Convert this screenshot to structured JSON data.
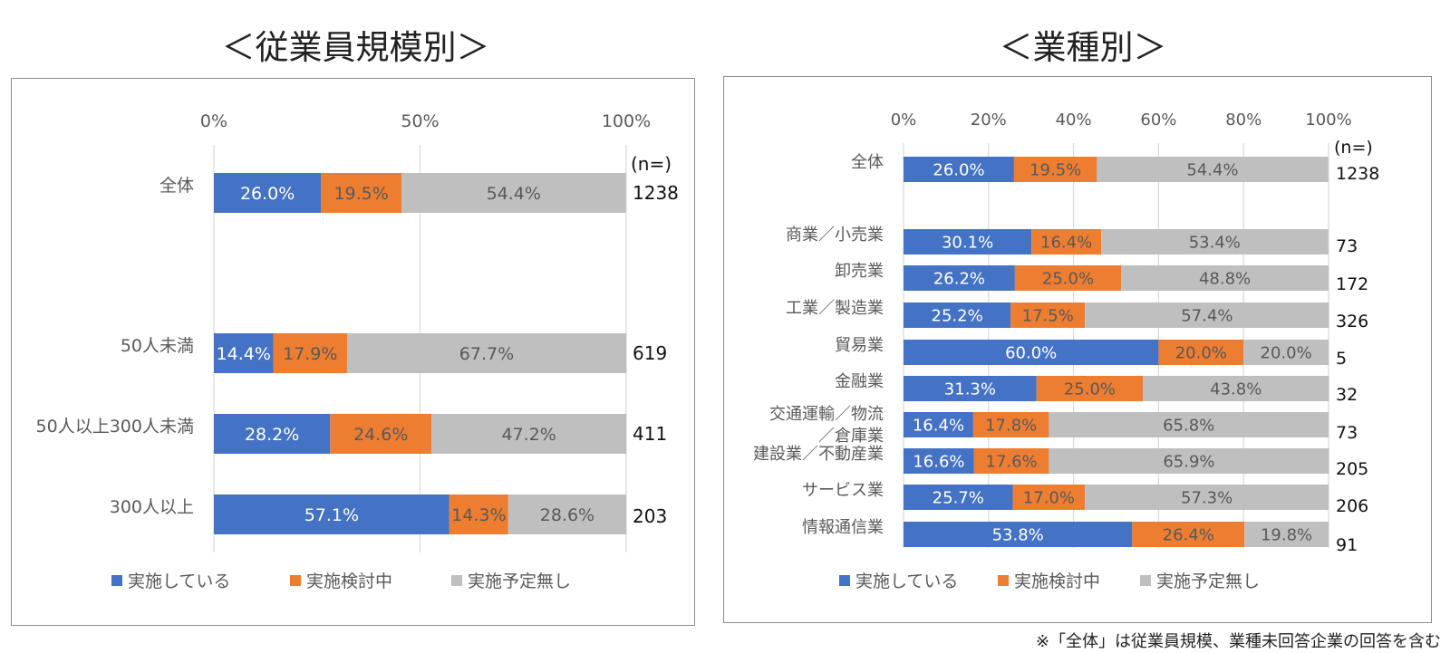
{
  "titles": {
    "left": "＜従業員規模別＞",
    "right": "＜業種別＞"
  },
  "footnote": "※「全体」は従業員規模、業種未回答企業の回答を含む",
  "n_header": "(n=)",
  "colors": {
    "implemented": "#4472C4",
    "considering": "#ED7D31",
    "none": "#BFBFBF",
    "grid": "#D9D9D9",
    "axis_text": "#595959",
    "label_on_color": "#FFFFFF",
    "label_on_gray": "#595959"
  },
  "chart_data": [
    {
      "type": "bar",
      "stacked": true,
      "orientation": "horizontal",
      "title": "＜従業員規模別＞",
      "xlim": [
        0,
        100
      ],
      "ticks": [
        "0%",
        "50%",
        "100%"
      ],
      "tick_values": [
        0,
        50,
        100
      ],
      "grid": true,
      "legend_position": "bottom",
      "categories": [
        "全体",
        "50人未満",
        "50人以上300人未満",
        "300人以上"
      ],
      "n": [
        "1238",
        "619",
        "411",
        "203"
      ],
      "series": [
        {
          "name": "実施している",
          "values": [
            26.0,
            14.4,
            28.2,
            57.1
          ]
        },
        {
          "name": "実施検討中",
          "values": [
            19.5,
            17.9,
            24.6,
            14.3
          ]
        },
        {
          "name": "実施予定無し",
          "values": [
            54.4,
            67.7,
            47.2,
            28.6
          ]
        }
      ]
    },
    {
      "type": "bar",
      "stacked": true,
      "orientation": "horizontal",
      "title": "＜業種別＞",
      "xlim": [
        0,
        100
      ],
      "ticks": [
        "0%",
        "20%",
        "40%",
        "60%",
        "80%",
        "100%"
      ],
      "tick_values": [
        0,
        20,
        40,
        60,
        80,
        100
      ],
      "grid": true,
      "legend_position": "bottom",
      "categories": [
        "全体",
        "商業／小売業",
        "卸売業",
        "工業／製造業",
        "貿易業",
        "金融業",
        "交通運輸／物流／倉庫業",
        "建設業／不動産業",
        "サービス業",
        "情報通信業"
      ],
      "n": [
        "1238",
        "73",
        "172",
        "326",
        "5",
        "32",
        "73",
        "205",
        "206",
        "91"
      ],
      "series": [
        {
          "name": "実施している",
          "values": [
            26.0,
            30.1,
            26.2,
            25.2,
            60.0,
            31.3,
            16.4,
            16.6,
            25.7,
            53.8
          ]
        },
        {
          "name": "実施検討中",
          "values": [
            19.5,
            16.4,
            25.0,
            17.5,
            20.0,
            25.0,
            17.8,
            17.6,
            17.0,
            26.4
          ]
        },
        {
          "name": "実施予定無し",
          "values": [
            54.4,
            53.4,
            48.8,
            57.4,
            20.0,
            43.8,
            65.8,
            65.9,
            57.3,
            19.8
          ]
        }
      ]
    }
  ]
}
